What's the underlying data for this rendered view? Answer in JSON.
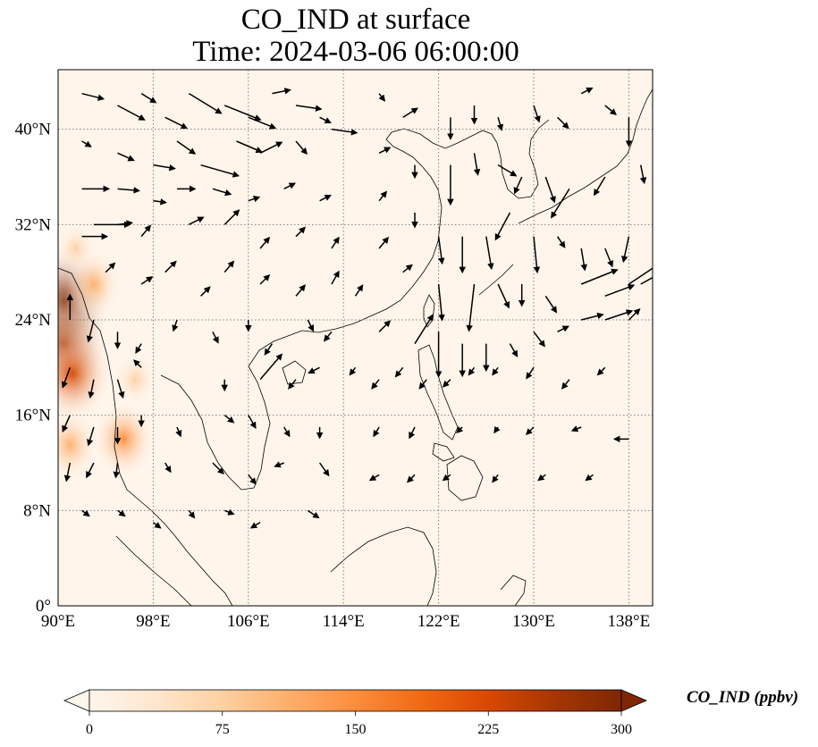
{
  "title": {
    "line1": "CO_IND at surface",
    "line2": "Time: 2024-03-06 06:00:00"
  },
  "map": {
    "projection": "PlateCarree",
    "lon_range": [
      90,
      140
    ],
    "lat_range": [
      0,
      45
    ],
    "gridlines": "dotted",
    "lon_ticks": [
      {
        "value": 90,
        "label": "90°E"
      },
      {
        "value": 98,
        "label": "98°E"
      },
      {
        "value": 106,
        "label": "106°E"
      },
      {
        "value": 114,
        "label": "114°E"
      },
      {
        "value": 122,
        "label": "122°E"
      },
      {
        "value": 130,
        "label": "130°E"
      },
      {
        "value": 138,
        "label": "138°E"
      }
    ],
    "lat_ticks": [
      {
        "value": 0,
        "label": "0°"
      },
      {
        "value": 8,
        "label": "8°N"
      },
      {
        "value": 16,
        "label": "16°N"
      },
      {
        "value": 24,
        "label": "24°N"
      },
      {
        "value": 32,
        "label": "32°N"
      },
      {
        "value": 40,
        "label": "40°N"
      }
    ],
    "hotspots": [
      {
        "lon": 90.5,
        "lat": 25.5,
        "value": 290
      },
      {
        "lon": 90.5,
        "lat": 22.0,
        "value": 260
      },
      {
        "lon": 91.2,
        "lat": 19.5,
        "value": 220
      },
      {
        "lon": 95.5,
        "lat": 14.0,
        "value": 150
      },
      {
        "lon": 91.0,
        "lat": 13.5,
        "value": 130
      },
      {
        "lon": 93.0,
        "lat": 27.0,
        "value": 120
      },
      {
        "lon": 91.5,
        "lat": 30.0,
        "value": 60
      },
      {
        "lon": 96.5,
        "lat": 19.0,
        "value": 70
      }
    ],
    "wind_vectors": [
      [
        92,
        43,
        1.2,
        -0.3
      ],
      [
        95,
        42,
        1.5,
        -0.8
      ],
      [
        97,
        43,
        0.8,
        -0.5
      ],
      [
        99,
        41,
        1.2,
        -0.6
      ],
      [
        101,
        43,
        1.8,
        -1.1
      ],
      [
        104,
        42,
        2.0,
        -0.8
      ],
      [
        106,
        41,
        1.5,
        -0.6
      ],
      [
        108,
        43,
        1.0,
        0.2
      ],
      [
        110,
        42,
        1.4,
        -0.2
      ],
      [
        112,
        41,
        0.6,
        -0.3
      ],
      [
        92,
        39,
        0.5,
        -0.3
      ],
      [
        95,
        38,
        0.9,
        -0.4
      ],
      [
        98,
        37,
        1.2,
        -0.2
      ],
      [
        100,
        39,
        1.0,
        -0.7
      ],
      [
        102,
        37,
        2.1,
        -0.6
      ],
      [
        105,
        39,
        1.4,
        -0.6
      ],
      [
        107,
        38,
        1.2,
        0.6
      ],
      [
        110,
        39,
        0.6,
        -0.7
      ],
      [
        113,
        40,
        1.4,
        -0.2
      ],
      [
        92,
        35,
        1.5,
        0.0
      ],
      [
        95,
        35,
        1.2,
        -0.1
      ],
      [
        98,
        34,
        0.7,
        -0.1
      ],
      [
        100,
        35,
        1.0,
        0.0
      ],
      [
        103,
        35,
        1.0,
        -0.3
      ],
      [
        106,
        34,
        0.6,
        0.2
      ],
      [
        109,
        35,
        0.6,
        0.3
      ],
      [
        112,
        34,
        0.6,
        0.3
      ],
      [
        92,
        31,
        1.4,
        0.0
      ],
      [
        93,
        32,
        2.0,
        0.0
      ],
      [
        95,
        32,
        0.8,
        0.1
      ],
      [
        97,
        31,
        0.5,
        0.6
      ],
      [
        101,
        32,
        0.8,
        0.4
      ],
      [
        104,
        32,
        0.8,
        0.8
      ],
      [
        107,
        30,
        0.5,
        0.6
      ],
      [
        110,
        31,
        0.5,
        0.5
      ],
      [
        113,
        30,
        0.4,
        0.6
      ],
      [
        94,
        28,
        0.5,
        0.5
      ],
      [
        97,
        27,
        0.6,
        0.4
      ],
      [
        99,
        28,
        0.6,
        0.6
      ],
      [
        102,
        26,
        0.5,
        0.5
      ],
      [
        104,
        28,
        0.5,
        0.6
      ],
      [
        107,
        27,
        0.5,
        0.5
      ],
      [
        110,
        26,
        0.5,
        0.6
      ],
      [
        113,
        27,
        0.4,
        0.7
      ],
      [
        115,
        26,
        0.4,
        0.6
      ],
      [
        91,
        24,
        0.0,
        1.4
      ],
      [
        93,
        24,
        -0.3,
        -1.2
      ],
      [
        95,
        23,
        0.0,
        -0.9
      ],
      [
        97,
        22,
        -0.3,
        -0.5
      ],
      [
        100,
        24,
        -0.2,
        -0.6
      ],
      [
        103,
        23,
        0.3,
        -0.6
      ],
      [
        106,
        24,
        0.0,
        -0.6
      ],
      [
        108,
        22,
        -0.4,
        -0.6
      ],
      [
        111,
        24,
        0.3,
        -0.6
      ],
      [
        113,
        23,
        -0.4,
        -0.5
      ],
      [
        91,
        20,
        -0.4,
        -1.1
      ],
      [
        93,
        19,
        -0.2,
        -1.0
      ],
      [
        95,
        19,
        0.3,
        -1.0
      ],
      [
        97,
        20,
        -0.4,
        0.4
      ],
      [
        104,
        19,
        0.0,
        -0.6
      ],
      [
        107,
        19,
        1.2,
        1.4
      ],
      [
        110,
        19,
        -0.4,
        -0.5
      ],
      [
        112,
        20,
        -0.6,
        -0.3
      ],
      [
        115,
        20,
        -0.3,
        -0.4
      ],
      [
        91,
        16,
        -0.4,
        -0.9
      ],
      [
        93,
        15,
        -0.3,
        -1.0
      ],
      [
        95,
        15,
        0.0,
        -0.9
      ],
      [
        97,
        16,
        0.0,
        -0.6
      ],
      [
        100,
        15,
        0.2,
        -0.5
      ],
      [
        104,
        16,
        0.5,
        -0.4
      ],
      [
        106,
        16,
        0.4,
        -0.7
      ],
      [
        109,
        15,
        0.3,
        -0.5
      ],
      [
        112,
        15,
        0.0,
        -0.6
      ],
      [
        91,
        12,
        -0.2,
        -1.0
      ],
      [
        93,
        12,
        -0.4,
        -0.8
      ],
      [
        95,
        12,
        -0.1,
        -0.8
      ],
      [
        99,
        12,
        0.3,
        -0.5
      ],
      [
        103,
        12,
        0.6,
        -0.6
      ],
      [
        106,
        11,
        0.4,
        -0.5
      ],
      [
        109,
        12,
        -0.5,
        -0.2
      ],
      [
        112,
        12,
        0.5,
        -0.7
      ],
      [
        92,
        8,
        0.4,
        -0.3
      ],
      [
        95,
        8,
        0.4,
        -0.3
      ],
      [
        98,
        7,
        0.4,
        -0.3
      ],
      [
        101,
        8,
        0.3,
        -0.4
      ],
      [
        104,
        8,
        0.5,
        -0.2
      ],
      [
        107,
        7,
        -0.5,
        -0.3
      ],
      [
        111,
        8,
        0.6,
        -0.4
      ],
      [
        117,
        43,
        0.3,
        -0.4
      ],
      [
        119,
        41,
        0.8,
        0.5
      ],
      [
        123,
        41,
        0.0,
        -1.2
      ],
      [
        125,
        42,
        0.0,
        -1.0
      ],
      [
        127,
        41,
        0.2,
        -0.7
      ],
      [
        130,
        42,
        0.3,
        -0.9
      ],
      [
        132,
        41,
        0.6,
        -0.6
      ],
      [
        134,
        43,
        0.6,
        0.3
      ],
      [
        136,
        42,
        0.6,
        -0.5
      ],
      [
        138,
        41,
        0.0,
        -1.6
      ],
      [
        140,
        42,
        0.2,
        -1.2
      ],
      [
        117,
        38,
        0.6,
        0.3
      ],
      [
        120,
        37,
        0.0,
        -0.7
      ],
      [
        123,
        37,
        0.0,
        -2.2
      ],
      [
        125,
        38,
        0.2,
        -1.2
      ],
      [
        127,
        37,
        1.0,
        -0.6
      ],
      [
        129,
        36,
        -0.4,
        -0.9
      ],
      [
        131,
        36,
        0.5,
        -1.4
      ],
      [
        133,
        35,
        -1.0,
        -1.6
      ],
      [
        136,
        36,
        -0.6,
        -1.0
      ],
      [
        139,
        37,
        0.2,
        -1.0
      ],
      [
        117,
        34,
        0.4,
        0.5
      ],
      [
        120,
        33,
        0.0,
        -0.8
      ],
      [
        122,
        31,
        0.2,
        -1.5
      ],
      [
        124,
        31,
        0.0,
        -2.0
      ],
      [
        126,
        31,
        0.3,
        -1.8
      ],
      [
        128,
        33,
        -0.8,
        -1.5
      ],
      [
        130,
        31,
        0.2,
        -2.0
      ],
      [
        132,
        31,
        0.4,
        -0.6
      ],
      [
        134,
        30,
        0.2,
        -1.2
      ],
      [
        136,
        30,
        0.4,
        -1.0
      ],
      [
        138,
        31,
        -0.3,
        -1.4
      ],
      [
        117,
        30,
        0.5,
        0.6
      ],
      [
        119,
        28,
        0.5,
        0.4
      ],
      [
        122,
        27,
        0.2,
        -2.0
      ],
      [
        125,
        27,
        -0.3,
        -2.6
      ],
      [
        127,
        27,
        0.6,
        -1.3
      ],
      [
        129,
        27,
        0.0,
        -1.2
      ],
      [
        131,
        26,
        0.6,
        -0.9
      ],
      [
        134,
        27,
        2.0,
        0.8
      ],
      [
        136,
        26,
        1.6,
        0.6
      ],
      [
        138,
        27,
        1.8,
        1.2
      ],
      [
        139,
        27,
        1.8,
        1.0
      ],
      [
        117,
        23,
        0.6,
        0.6
      ],
      [
        120,
        22,
        1.0,
        1.6
      ],
      [
        122,
        23,
        0.0,
        -2.5
      ],
      [
        124,
        22,
        0.0,
        -1.8
      ],
      [
        126,
        22,
        0.0,
        -1.5
      ],
      [
        128,
        22,
        0.4,
        -0.7
      ],
      [
        130,
        23,
        0.6,
        -0.8
      ],
      [
        132,
        23,
        0.6,
        0.3
      ],
      [
        134,
        24,
        1.2,
        0.3
      ],
      [
        136,
        24,
        1.5,
        0.5
      ],
      [
        138,
        24,
        0.6,
        0.6
      ],
      [
        117,
        19,
        -0.4,
        -0.5
      ],
      [
        119,
        20,
        -0.4,
        -0.5
      ],
      [
        121,
        19,
        -0.4,
        -0.5
      ],
      [
        123,
        19,
        -0.4,
        -0.4
      ],
      [
        125,
        20,
        -0.3,
        -0.4
      ],
      [
        127,
        20,
        -0.3,
        -0.4
      ],
      [
        130,
        20,
        -0.4,
        -0.6
      ],
      [
        133,
        19,
        -0.4,
        -0.5
      ],
      [
        136,
        20,
        -0.4,
        -0.4
      ],
      [
        117,
        15,
        -0.3,
        -0.5
      ],
      [
        120,
        15,
        -0.3,
        -0.6
      ],
      [
        124,
        15,
        -0.3,
        -0.3
      ],
      [
        127,
        15,
        -0.2,
        -0.3
      ],
      [
        130,
        15,
        -0.4,
        -0.4
      ],
      [
        134,
        15,
        -0.5,
        -0.2
      ],
      [
        138,
        14,
        -0.8,
        0.0
      ],
      [
        117,
        11,
        -0.5,
        -0.3
      ],
      [
        120,
        11,
        -0.4,
        -0.4
      ],
      [
        123,
        11,
        -0.4,
        -0.3
      ],
      [
        127,
        11,
        -0.3,
        -0.4
      ],
      [
        131,
        11,
        -0.4,
        -0.3
      ],
      [
        135,
        11,
        -0.4,
        -0.3
      ]
    ]
  },
  "colorbar": {
    "label": "CO_IND (ppbv)",
    "min": 0,
    "max": 300,
    "extend": "both",
    "ticks": [
      {
        "value": 0,
        "label": "0"
      },
      {
        "value": 75,
        "label": "75"
      },
      {
        "value": 150,
        "label": "150"
      },
      {
        "value": 225,
        "label": "225"
      },
      {
        "value": 300,
        "label": "300"
      }
    ],
    "colormap": [
      "#fff5eb",
      "#fee6ce",
      "#fdd0a2",
      "#fdae6b",
      "#fd8d3c",
      "#f16913",
      "#d94801",
      "#a63603",
      "#7f2704"
    ]
  }
}
